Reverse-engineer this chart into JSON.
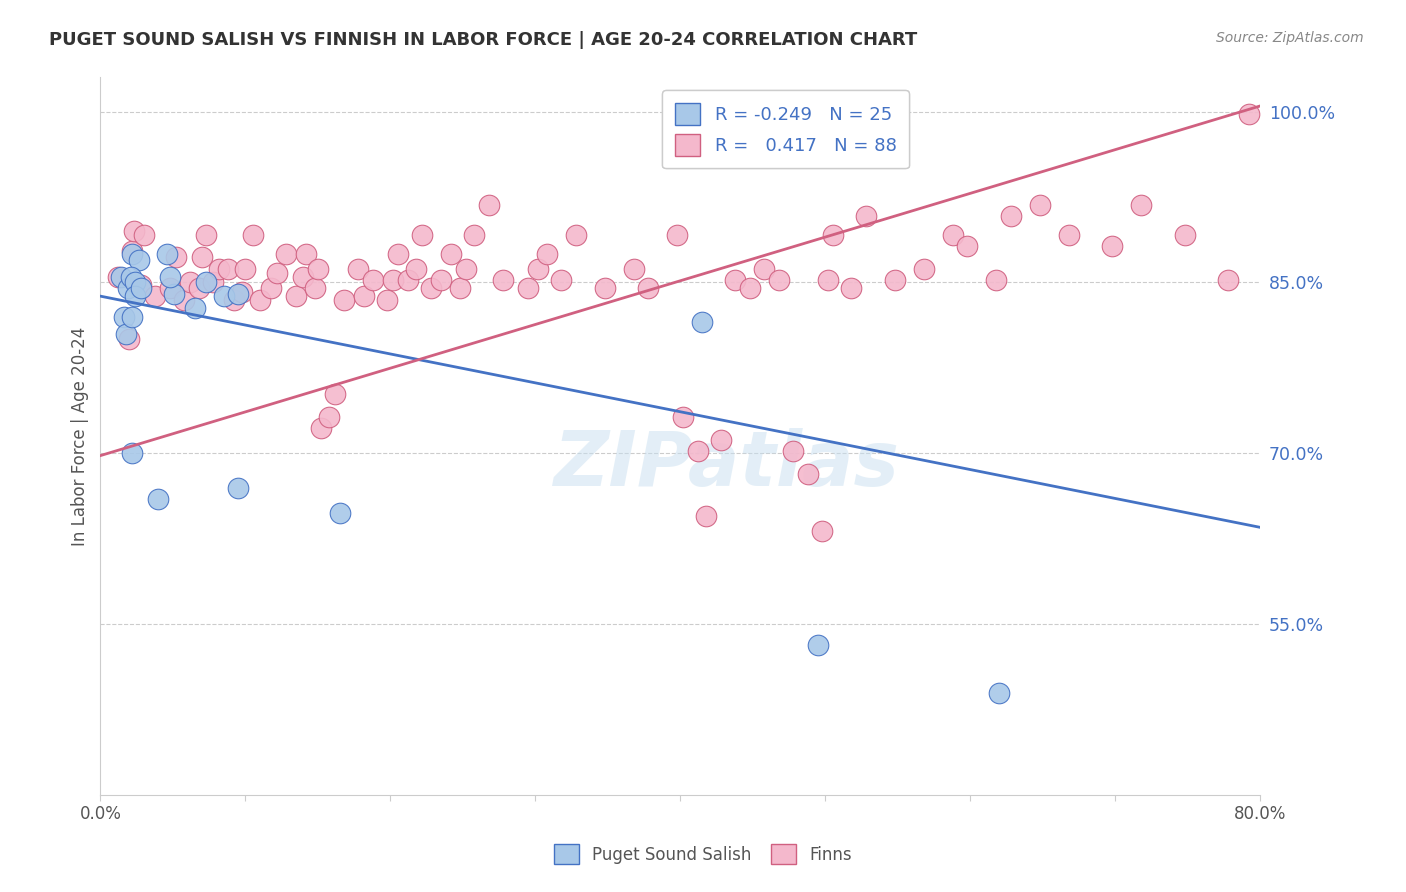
{
  "title": "PUGET SOUND SALISH VS FINNISH IN LABOR FORCE | AGE 20-24 CORRELATION CHART",
  "source": "Source: ZipAtlas.com",
  "ylabel": "In Labor Force | Age 20-24",
  "xmin": 0.0,
  "xmax": 0.8,
  "ymin": 0.4,
  "ymax": 1.03,
  "ytick_values": [
    0.55,
    0.7,
    0.85,
    1.0
  ],
  "ytick_labels": [
    "55.0%",
    "70.0%",
    "85.0%",
    "100.0%"
  ],
  "xtick_values": [
    0.0,
    0.1,
    0.2,
    0.3,
    0.4,
    0.5,
    0.6,
    0.7,
    0.8
  ],
  "xtick_labels": [
    "0.0%",
    "",
    "",
    "",
    "",
    "",
    "",
    "",
    "80.0%"
  ],
  "gridline_y": [
    0.55,
    0.7,
    0.85,
    1.0
  ],
  "blue_dot_color": "#a8c8e8",
  "blue_edge_color": "#4472c4",
  "pink_dot_color": "#f4b8cc",
  "pink_edge_color": "#d06080",
  "blue_line_color": "#4472c4",
  "pink_line_color": "#d06080",
  "R_blue": -0.249,
  "N_blue": 25,
  "R_pink": 0.417,
  "N_pink": 88,
  "watermark": "ZIPatlas",
  "blue_line_x0": 0.0,
  "blue_line_y0": 0.838,
  "blue_line_x1": 0.8,
  "blue_line_y1": 0.635,
  "pink_line_x0": 0.0,
  "pink_line_y0": 0.698,
  "pink_line_x1": 0.8,
  "pink_line_y1": 1.005,
  "blue_scatter_x": [
    0.014,
    0.022,
    0.027,
    0.019,
    0.021,
    0.024,
    0.024,
    0.016,
    0.018,
    0.022,
    0.028,
    0.046,
    0.051,
    0.048,
    0.065,
    0.073,
    0.085,
    0.095,
    0.022,
    0.04,
    0.095,
    0.165,
    0.415,
    0.495,
    0.62
  ],
  "blue_scatter_y": [
    0.855,
    0.875,
    0.87,
    0.845,
    0.855,
    0.85,
    0.838,
    0.82,
    0.805,
    0.82,
    0.845,
    0.875,
    0.84,
    0.855,
    0.828,
    0.85,
    0.838,
    0.84,
    0.7,
    0.66,
    0.67,
    0.648,
    0.815,
    0.532,
    0.49
  ],
  "pink_scatter_x": [
    0.012,
    0.02,
    0.022,
    0.023,
    0.028,
    0.03,
    0.038,
    0.048,
    0.052,
    0.058,
    0.062,
    0.068,
    0.07,
    0.073,
    0.078,
    0.082,
    0.088,
    0.092,
    0.098,
    0.1,
    0.105,
    0.11,
    0.118,
    0.122,
    0.128,
    0.135,
    0.14,
    0.142,
    0.148,
    0.15,
    0.152,
    0.158,
    0.162,
    0.168,
    0.178,
    0.182,
    0.188,
    0.198,
    0.202,
    0.205,
    0.212,
    0.218,
    0.222,
    0.228,
    0.235,
    0.242,
    0.248,
    0.252,
    0.258,
    0.268,
    0.278,
    0.295,
    0.302,
    0.308,
    0.318,
    0.328,
    0.348,
    0.368,
    0.378,
    0.398,
    0.402,
    0.412,
    0.418,
    0.428,
    0.438,
    0.448,
    0.458,
    0.468,
    0.478,
    0.488,
    0.498,
    0.502,
    0.505,
    0.518,
    0.528,
    0.548,
    0.568,
    0.588,
    0.598,
    0.618,
    0.628,
    0.648,
    0.668,
    0.698,
    0.718,
    0.748,
    0.778,
    0.792
  ],
  "pink_scatter_y": [
    0.855,
    0.8,
    0.878,
    0.895,
    0.848,
    0.892,
    0.838,
    0.845,
    0.872,
    0.835,
    0.85,
    0.845,
    0.872,
    0.892,
    0.85,
    0.862,
    0.862,
    0.835,
    0.842,
    0.862,
    0.892,
    0.835,
    0.845,
    0.858,
    0.875,
    0.838,
    0.855,
    0.875,
    0.845,
    0.862,
    0.722,
    0.732,
    0.752,
    0.835,
    0.862,
    0.838,
    0.852,
    0.835,
    0.852,
    0.875,
    0.852,
    0.862,
    0.892,
    0.845,
    0.852,
    0.875,
    0.845,
    0.862,
    0.892,
    0.918,
    0.852,
    0.845,
    0.862,
    0.875,
    0.852,
    0.892,
    0.845,
    0.862,
    0.845,
    0.892,
    0.732,
    0.702,
    0.645,
    0.712,
    0.852,
    0.845,
    0.862,
    0.852,
    0.702,
    0.682,
    0.632,
    0.852,
    0.892,
    0.845,
    0.908,
    0.852,
    0.862,
    0.892,
    0.882,
    0.852,
    0.908,
    0.918,
    0.892,
    0.882,
    0.918,
    0.892,
    0.852,
    0.998
  ]
}
